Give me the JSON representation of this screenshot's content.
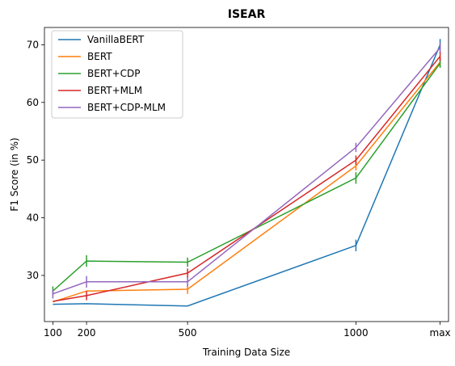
{
  "chart_data": {
    "type": "line",
    "title": "ISEAR",
    "xlabel": "Training Data Size",
    "ylabel": "F1 Score (in %)",
    "categories": [
      "100",
      "200",
      "500",
      "1000",
      "max"
    ],
    "x": [
      100,
      200,
      500,
      1000,
      1250
    ],
    "ylim": [
      22,
      73
    ],
    "yticks": [
      30,
      40,
      50,
      60,
      70
    ],
    "grid": false,
    "legend_position": "top-left",
    "series": [
      {
        "name": "VanillaBERT",
        "color": "#1f77b4",
        "values": [
          25.0,
          25.1,
          24.7,
          35.2,
          70.0
        ],
        "errors": [
          0.0,
          0.0,
          0.0,
          1.0,
          1.0
        ]
      },
      {
        "name": "BERT",
        "color": "#ff7f0e",
        "values": [
          25.4,
          27.3,
          27.6,
          49.0,
          67.0
        ],
        "errors": [
          0.0,
          0.0,
          0.8,
          0.8,
          0.8
        ]
      },
      {
        "name": "BERT+CDP",
        "color": "#2ca02c",
        "values": [
          27.3,
          32.5,
          32.3,
          46.9,
          66.8
        ],
        "errors": [
          0.8,
          1.0,
          0.8,
          1.0,
          0.8
        ]
      },
      {
        "name": "BERT+MLM",
        "color": "#d62728",
        "values": [
          25.5,
          26.5,
          30.4,
          50.0,
          68.0
        ],
        "errors": [
          0.0,
          0.8,
          0.8,
          0.8,
          0.8
        ]
      },
      {
        "name": "BERT+CDP-MLM",
        "color": "#9467bd",
        "values": [
          26.8,
          28.9,
          28.9,
          52.2,
          69.5
        ],
        "errors": [
          0.8,
          1.0,
          0.8,
          0.8,
          0.8
        ]
      }
    ]
  }
}
